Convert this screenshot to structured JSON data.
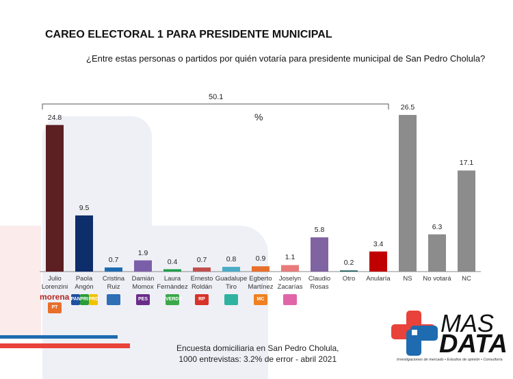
{
  "header": {
    "title": "CAREO ELECTORAL 1 PARA PRESIDENTE MUNICIPAL",
    "question": "¿Entre estas personas o partidos por quién votaría para presidente municipal de San Pedro Cholula?"
  },
  "chart_data": {
    "type": "bar",
    "unit_label": "%",
    "bracket_total": "50.1",
    "categories": [
      [
        "Julio",
        "Lorenzini"
      ],
      [
        "Paola",
        "Angón"
      ],
      [
        "Cristina",
        "Ruiz"
      ],
      [
        "Damián",
        "Momox"
      ],
      [
        "Laura",
        "Fernández"
      ],
      [
        "Ernesto",
        "Roldán"
      ],
      [
        "Guadalupe",
        "Tiro"
      ],
      [
        "Egberto",
        "Martínez"
      ],
      [
        "Joselyn",
        "Zacarías"
      ],
      [
        "Claudio",
        "Rosas"
      ],
      [
        "Otro",
        ""
      ],
      [
        "Anularía",
        ""
      ],
      [
        "NS",
        ""
      ],
      [
        "No votará",
        ""
      ],
      [
        "NC",
        ""
      ]
    ],
    "values": [
      24.8,
      9.5,
      0.7,
      1.9,
      0.4,
      0.7,
      0.8,
      0.9,
      1.1,
      5.8,
      0.2,
      3.4,
      26.5,
      6.3,
      17.1
    ],
    "colors": [
      "#5c1f22",
      "#0e2d6b",
      "#1f6bb0",
      "#7b5ea8",
      "#1f9e4a",
      "#c0504d",
      "#4bacc6",
      "#e8702a",
      "#e87b7b",
      "#8064a2",
      "#1f5f5f",
      "#c00000",
      "#8c8c8c",
      "#8c8c8c",
      "#8c8c8c"
    ],
    "party_logos": [
      [
        "morena",
        "PT"
      ],
      [
        "PAN",
        "PRI",
        "PRD"
      ],
      [
        "Compromiso por Puebla"
      ],
      [
        "PES"
      ],
      [
        "VERDE"
      ],
      [
        "RP"
      ],
      [
        "alianza"
      ],
      [
        "MC"
      ],
      [
        "FUERZA MEXICO"
      ],
      [],
      [],
      [],
      [],
      [],
      []
    ],
    "ylim": [
      0,
      27
    ]
  },
  "footer": {
    "line1": "Encuesta domiciliaria en San Pedro Cholula,",
    "line2": "1000 entrevistas: 3.2% de error - abril 2021"
  },
  "brand": {
    "line1": "MAS",
    "line2": "DATA",
    "tagline": "Investigaciones de mercado • Estudios de opinión • Consultoría"
  }
}
